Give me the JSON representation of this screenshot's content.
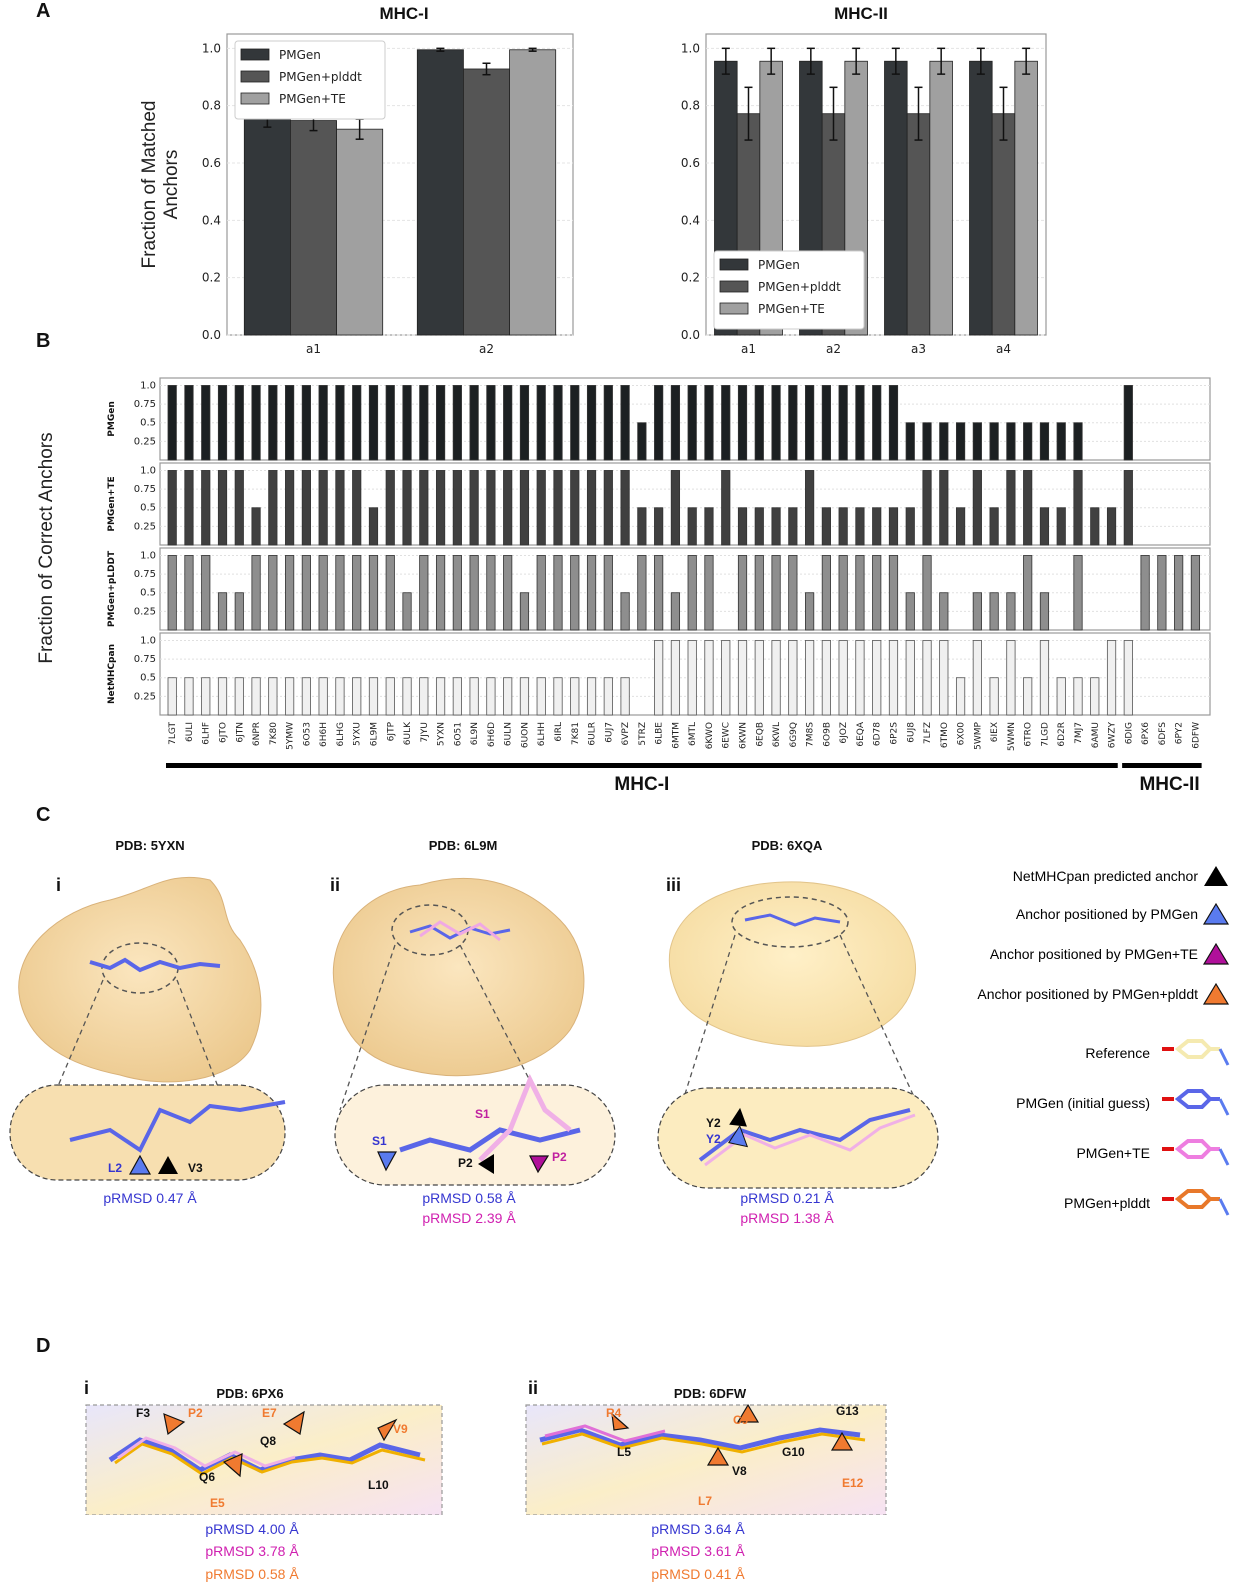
{
  "panels": {
    "A": "A",
    "B": "B",
    "C": "C",
    "D": "D"
  },
  "colors": {
    "pmgen": "#33373a",
    "pmgen_plddt": "#555555",
    "pmgen_te": "#a0a0a0",
    "netmhcpan_light": "#f0f0f0",
    "plddt_row": "#8e8e8e",
    "te_row": "#404040",
    "pmgen_row": "#1c2022",
    "blue_text": "#3535d0",
    "magenta_text": "#d020b0",
    "orange_text": "#f07a30",
    "tri_black": "#000000",
    "tri_blue": "#5a7bef",
    "tri_magenta": "#b0109a",
    "tri_orange": "#f07a30",
    "surface": "#f6d9a8"
  },
  "chart_data": [
    {
      "id": "A-MHC-I",
      "type": "bar",
      "title": "MHC-I",
      "ylabel": "Fraction of Matched Anchors",
      "xlabel": "",
      "categories": [
        "a1",
        "a2"
      ],
      "ylim": [
        0,
        1.05
      ],
      "yticks": [
        "0.0",
        "0.2",
        "0.4",
        "0.6",
        "0.8",
        "1.0"
      ],
      "legend_position": "top-left",
      "series": [
        {
          "name": "PMGen",
          "values": [
            0.76,
            0.995
          ],
          "errors": [
            0.035,
            0.005
          ]
        },
        {
          "name": "PMGen+plddt",
          "values": [
            0.748,
            0.928
          ],
          "errors": [
            0.035,
            0.02
          ]
        },
        {
          "name": "PMGen+TE",
          "values": [
            0.718,
            0.995
          ],
          "errors": [
            0.035,
            0.005
          ]
        }
      ]
    },
    {
      "id": "A-MHC-II",
      "type": "bar",
      "title": "MHC-II",
      "ylabel": "",
      "xlabel": "",
      "categories": [
        "a1",
        "a2",
        "a3",
        "a4"
      ],
      "ylim": [
        0,
        1.05
      ],
      "yticks": [
        "0.0",
        "0.2",
        "0.4",
        "0.6",
        "0.8",
        "1.0"
      ],
      "legend_position": "bottom-left",
      "series": [
        {
          "name": "PMGen",
          "values": [
            0.955,
            0.955,
            0.955,
            0.955
          ],
          "errors": [
            0.045,
            0.045,
            0.045,
            0.045
          ]
        },
        {
          "name": "PMGen+plddt",
          "values": [
            0.772,
            0.772,
            0.772,
            0.772
          ],
          "errors": [
            0.092,
            0.092,
            0.092,
            0.092
          ]
        },
        {
          "name": "PMGen+TE",
          "values": [
            0.955,
            0.955,
            0.955,
            0.955
          ],
          "errors": [
            0.045,
            0.045,
            0.045,
            0.045
          ]
        }
      ]
    },
    {
      "id": "B",
      "type": "bar",
      "title": "",
      "ylabel": "Fraction of Correct Anchors",
      "ylim": [
        0,
        1.1
      ],
      "yticks": [
        "0.25",
        "0.5",
        "0.75",
        "1.0"
      ],
      "categories": [
        "7LGT",
        "6ULI",
        "6LHF",
        "6JTO",
        "6JTN",
        "6NPR",
        "7K80",
        "5YMW",
        "6O53",
        "6H6H",
        "6LHG",
        "5YXU",
        "6L9M",
        "6JTP",
        "6ULK",
        "7JYU",
        "5YXN",
        "6O51",
        "6L9N",
        "6H6D",
        "6ULN",
        "6UON",
        "6LHH",
        "6IRL",
        "7K81",
        "6ULR",
        "6UJ7",
        "6VPZ",
        "5TRZ",
        "6LBE",
        "6MTM",
        "6MTL",
        "6KWO",
        "6EWC",
        "6KWN",
        "6EQB",
        "6KWL",
        "6G9Q",
        "7M8S",
        "6O9B",
        "6JOZ",
        "6EQA",
        "6D78",
        "6P2S",
        "6UJ8",
        "7LFZ",
        "6TMO",
        "6X00",
        "5WMP",
        "6IEX",
        "5WMN",
        "6TRO",
        "7LGD",
        "6D2R",
        "7MJ7",
        "6AMU",
        "6WZY",
        "6DIG",
        "6PX6",
        "6DFS",
        "6PY2",
        "6DFW"
      ],
      "groups": [
        {
          "label": "MHC-I",
          "from": 0,
          "to": 56
        },
        {
          "label": "MHC-II",
          "from": 57,
          "to": 61
        }
      ],
      "series": [
        {
          "name": "PMGen",
          "values": [
            1,
            1,
            1,
            1,
            1,
            1,
            1,
            1,
            1,
            1,
            1,
            1,
            1,
            1,
            1,
            1,
            1,
            1,
            1,
            1,
            1,
            1,
            1,
            1,
            1,
            1,
            1,
            1,
            0.5,
            1,
            1,
            1,
            1,
            1,
            1,
            1,
            1,
            1,
            1,
            1,
            1,
            1,
            1,
            1,
            0.5,
            0.5,
            0.5,
            0.5,
            0.5,
            0.5,
            0.5,
            0.5,
            0.5,
            0.5,
            0.5,
            0,
            0,
            1,
            0,
            0,
            0,
            0
          ]
        },
        {
          "name": "PMGen+TE",
          "values": [
            1,
            1,
            1,
            1,
            1,
            0.5,
            1,
            1,
            1,
            1,
            1,
            1,
            0.5,
            1,
            1,
            1,
            1,
            1,
            1,
            1,
            1,
            1,
            1,
            1,
            1,
            1,
            1,
            1,
            0.5,
            0.5,
            1,
            0.5,
            0.5,
            1,
            0.5,
            0.5,
            0.5,
            0.5,
            1,
            0.5,
            0.5,
            0.5,
            0.5,
            0.5,
            0.5,
            1,
            1,
            0.5,
            1,
            0.5,
            1,
            1,
            0.5,
            0.5,
            1,
            0.5,
            0.5,
            1,
            0,
            0,
            0,
            0
          ]
        },
        {
          "name": "PMGen+pLDDT",
          "values": [
            1,
            1,
            1,
            0.5,
            0.5,
            1,
            1,
            1,
            1,
            1,
            1,
            1,
            1,
            1,
            0.5,
            1,
            1,
            1,
            1,
            1,
            1,
            0.5,
            1,
            1,
            1,
            1,
            1,
            0.5,
            1,
            1,
            0.5,
            1,
            1,
            0,
            1,
            1,
            1,
            1,
            0.5,
            1,
            1,
            1,
            1,
            1,
            0.5,
            1,
            0.5,
            0,
            0.5,
            0.5,
            0.5,
            1,
            0.5,
            0,
            1,
            0,
            0,
            0,
            1,
            1,
            1,
            1
          ]
        },
        {
          "name": "NetMHCpan",
          "values": [
            0.5,
            0.5,
            0.5,
            0.5,
            0.5,
            0.5,
            0.5,
            0.5,
            0.5,
            0.5,
            0.5,
            0.5,
            0.5,
            0.5,
            0.5,
            0.5,
            0.5,
            0.5,
            0.5,
            0.5,
            0.5,
            0.5,
            0.5,
            0.5,
            0.5,
            0.5,
            0.5,
            0.5,
            0,
            1,
            1,
            1,
            1,
            1,
            1,
            1,
            1,
            1,
            1,
            1,
            1,
            1,
            1,
            1,
            1,
            1,
            1,
            0.5,
            1,
            0.5,
            1,
            0.5,
            1,
            0.5,
            0.5,
            0.5,
            1,
            1,
            0,
            0,
            0,
            0
          ]
        }
      ]
    }
  ],
  "panel_c": {
    "structures": [
      {
        "roman": "i",
        "title": "PDB: 5YXN",
        "labels": [
          {
            "text": "L2",
            "color": "blue"
          },
          {
            "text": "V3",
            "color": "black"
          }
        ],
        "rmsd": [
          {
            "text": "pRMSD 0.47 Å",
            "color": "blue"
          }
        ]
      },
      {
        "roman": "ii",
        "title": "PDB: 6L9M",
        "labels": [
          {
            "text": "S1",
            "color": "magenta"
          },
          {
            "text": "S1",
            "color": "blue"
          },
          {
            "text": "P2",
            "color": "black"
          },
          {
            "text": "P2",
            "color": "magenta"
          }
        ],
        "rmsd": [
          {
            "text": "pRMSD 0.58 Å",
            "color": "blue"
          },
          {
            "text": "pRMSD 2.39 Å",
            "color": "magenta"
          }
        ]
      },
      {
        "roman": "iii",
        "title": "PDB: 6XQA",
        "labels": [
          {
            "text": "Y2",
            "color": "black"
          },
          {
            "text": "Y2",
            "color": "blue"
          }
        ],
        "rmsd": [
          {
            "text": "pRMSD 0.21 Å",
            "color": "blue"
          },
          {
            "text": "pRMSD 1.38 Å",
            "color": "magenta"
          }
        ]
      }
    ],
    "legend": {
      "anchors": [
        {
          "label": "NetMHCpan predicted anchor",
          "color": "#000000"
        },
        {
          "label": "Anchor positioned by PMGen",
          "color": "#5a7bef"
        },
        {
          "label": "Anchor positioned by PMGen+TE",
          "color": "#b0109a"
        },
        {
          "label": "Anchor positioned by PMGen+plddt",
          "color": "#f07a30"
        }
      ],
      "models": [
        {
          "label": "Reference",
          "color": "#f5eab0"
        },
        {
          "label": "PMGen (initial guess)",
          "color": "#5a66e8"
        },
        {
          "label": "PMGen+TE",
          "color": "#ee7ee0"
        },
        {
          "label": "PMGen+plddt",
          "color": "#e8782a"
        }
      ]
    }
  },
  "panel_d": {
    "structures": [
      {
        "roman": "i",
        "title": "PDB: 6PX6",
        "labels": [
          {
            "text": "F3",
            "color": "black"
          },
          {
            "text": "P2",
            "color": "orange"
          },
          {
            "text": "E7",
            "color": "orange"
          },
          {
            "text": "Q8",
            "color": "black"
          },
          {
            "text": "V9",
            "color": "orange"
          },
          {
            "text": "Q6",
            "color": "black"
          },
          {
            "text": "E5",
            "color": "orange"
          },
          {
            "text": "L10",
            "color": "black"
          }
        ],
        "rmsd": [
          {
            "text": "pRMSD 4.00 Å",
            "color": "blue"
          },
          {
            "text": "pRMSD 3.78 Å",
            "color": "magenta"
          },
          {
            "text": "pRMSD 0.58 Å",
            "color": "orange"
          }
        ]
      },
      {
        "roman": "ii",
        "title": "PDB: 6DFW",
        "labels": [
          {
            "text": "R4",
            "color": "orange"
          },
          {
            "text": "C9",
            "color": "orange"
          },
          {
            "text": "G13",
            "color": "black"
          },
          {
            "text": "L5",
            "color": "black"
          },
          {
            "text": "G10",
            "color": "black"
          },
          {
            "text": "V8",
            "color": "black"
          },
          {
            "text": "E12",
            "color": "orange"
          },
          {
            "text": "L7",
            "color": "orange"
          }
        ],
        "rmsd": [
          {
            "text": "pRMSD 3.64 Å",
            "color": "blue"
          },
          {
            "text": "pRMSD 3.61 Å",
            "color": "magenta"
          },
          {
            "text": "pRMSD 0.41 Å",
            "color": "orange"
          }
        ]
      }
    ]
  }
}
